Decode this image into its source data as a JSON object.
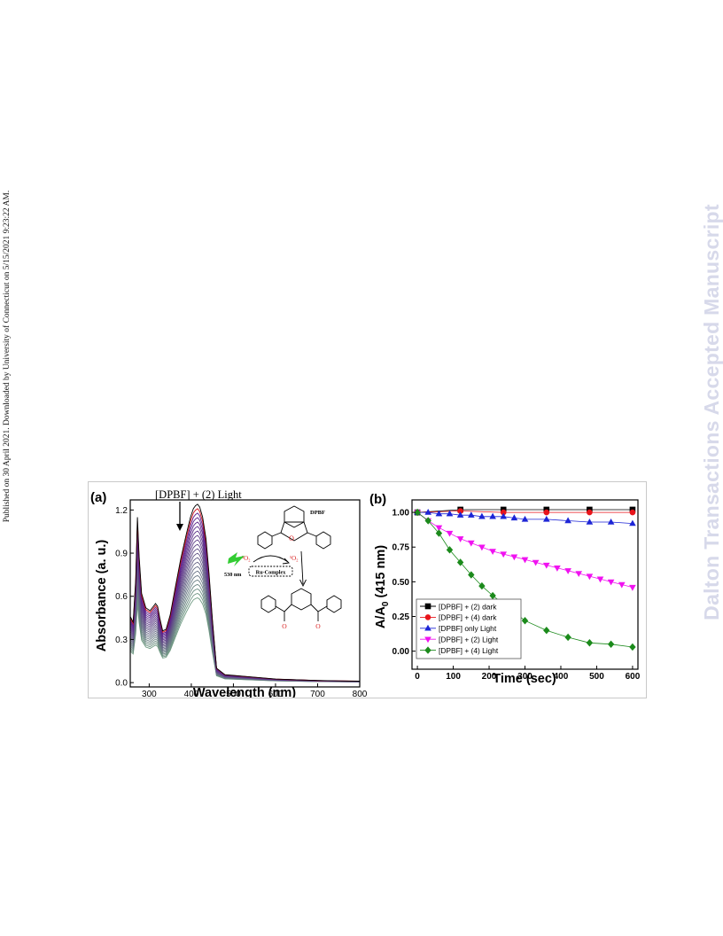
{
  "side_note": "Published on 30 April 2021. Downloaded by University of Connecticut on 5/15/2021 9:23:22 AM.",
  "watermark": "Dalton Transactions Accepted Manuscript",
  "colors": {
    "black": "#000000",
    "red": "#e8141b",
    "blue": "#1d25d6",
    "magenta": "#f012f0",
    "green": "#1b8a1b",
    "spectra_top": "#5a1a8c",
    "spectra_bottom": "#6f9a82",
    "lightning": "#32cc32",
    "oxygen": "#d81818"
  },
  "panel_a": {
    "label": "(a)",
    "annotation": "[DPBF] + (2) Light",
    "scheme": {
      "dpbf_label": "DPBF",
      "wavelength": "530 nm",
      "o2_triplet": "³O₂",
      "o2_singlet": "¹O₂",
      "catalyst": "Ru-Complex",
      "ring_o": "O",
      "carbonyl_o1": "O",
      "carbonyl_o2": "O"
    }
  },
  "panel_b": {
    "label": "(b)"
  },
  "chart_data": [
    {
      "type": "line",
      "panel": "(a)",
      "title": "",
      "xlabel": "Wavelength (nm)",
      "ylabel": "Absorbance (a. u.)",
      "xlim": [
        255,
        800
      ],
      "ylim": [
        -0.03,
        1.27
      ],
      "xticks": [
        300,
        400,
        500,
        600,
        700,
        800
      ],
      "yticks": [
        0.0,
        0.3,
        0.6,
        0.9,
        1.2
      ],
      "ytick_labels": [
        "0.0",
        "0.3",
        "0.6",
        "0.9",
        "1.2"
      ],
      "grid": false,
      "spectrum_shape": {
        "x": [
          255,
          262,
          268,
          272,
          276,
          282,
          292,
          302,
          310,
          315,
          320,
          325,
          332,
          340,
          350,
          362,
          375,
          388,
          398,
          405,
          410,
          415,
          420,
          427,
          435,
          442,
          450,
          460,
          480,
          500,
          520,
          560,
          600,
          650,
          700,
          750,
          800
        ],
        "y": [
          0.46,
          0.42,
          0.72,
          1.15,
          0.88,
          0.62,
          0.52,
          0.5,
          0.53,
          0.55,
          0.53,
          0.45,
          0.36,
          0.37,
          0.47,
          0.66,
          0.86,
          1.03,
          1.15,
          1.21,
          1.23,
          1.24,
          1.22,
          1.15,
          1.0,
          0.76,
          0.44,
          0.1,
          0.055,
          0.05,
          0.045,
          0.035,
          0.025,
          0.02,
          0.015,
          0.012,
          0.01
        ]
      },
      "series_scale_factors": [
        1.0,
        0.975,
        0.95,
        0.925,
        0.9,
        0.875,
        0.85,
        0.825,
        0.8,
        0.775,
        0.75,
        0.725,
        0.7,
        0.675,
        0.65,
        0.625,
        0.6,
        0.575,
        0.55,
        0.525,
        0.5,
        0.475
      ]
    },
    {
      "type": "scatter",
      "panel": "(b)",
      "title": "",
      "xlabel": "Time (sec)",
      "ylabel": "A/A0 (415 nm)",
      "xlim": [
        -15,
        615
      ],
      "ylim": [
        -0.13,
        1.09
      ],
      "xticks": [
        0,
        100,
        200,
        300,
        400,
        500,
        600
      ],
      "yticks": [
        0.0,
        0.25,
        0.5,
        0.75,
        1.0
      ],
      "ytick_labels": [
        "0.00",
        "0.25",
        "0.50",
        "0.75",
        "1.00"
      ],
      "grid": false,
      "legend": "bottom-left",
      "series": [
        {
          "name": "[DPBF] + (2) dark",
          "color_key": "black",
          "marker": "square",
          "x": [
            0,
            120,
            240,
            360,
            480,
            600
          ],
          "y": [
            1.0,
            1.02,
            1.02,
            1.02,
            1.02,
            1.02
          ]
        },
        {
          "name": "[DPBF] + (4) dark",
          "color_key": "red",
          "marker": "circle",
          "x": [
            0,
            120,
            240,
            360,
            480,
            600
          ],
          "y": [
            1.0,
            1.01,
            1.0,
            1.0,
            1.0,
            1.0
          ]
        },
        {
          "name": "[DPBF] only Light",
          "color_key": "blue",
          "marker": "triangle-up",
          "x": [
            0,
            30,
            60,
            90,
            120,
            150,
            180,
            210,
            240,
            270,
            300,
            360,
            420,
            480,
            540,
            600
          ],
          "y": [
            1.0,
            1.0,
            0.99,
            0.99,
            0.98,
            0.98,
            0.97,
            0.97,
            0.97,
            0.96,
            0.95,
            0.95,
            0.94,
            0.93,
            0.93,
            0.92
          ]
        },
        {
          "name": "[DPBF] + (2) Light",
          "color_key": "magenta",
          "marker": "triangle-down",
          "x": [
            0,
            30,
            60,
            90,
            120,
            150,
            180,
            210,
            240,
            270,
            300,
            330,
            360,
            390,
            420,
            450,
            480,
            510,
            540,
            570,
            600
          ],
          "y": [
            1.0,
            0.94,
            0.89,
            0.85,
            0.81,
            0.78,
            0.75,
            0.72,
            0.7,
            0.68,
            0.66,
            0.64,
            0.62,
            0.6,
            0.58,
            0.56,
            0.54,
            0.52,
            0.5,
            0.48,
            0.46
          ]
        },
        {
          "name": "[DPBF] + (4) Light",
          "color_key": "green",
          "marker": "diamond",
          "x": [
            0,
            30,
            60,
            90,
            120,
            150,
            180,
            210,
            240,
            270,
            300,
            360,
            420,
            480,
            540,
            600
          ],
          "y": [
            1.0,
            0.94,
            0.85,
            0.73,
            0.64,
            0.55,
            0.47,
            0.4,
            0.34,
            0.28,
            0.22,
            0.15,
            0.1,
            0.06,
            0.05,
            0.03
          ]
        }
      ]
    }
  ]
}
